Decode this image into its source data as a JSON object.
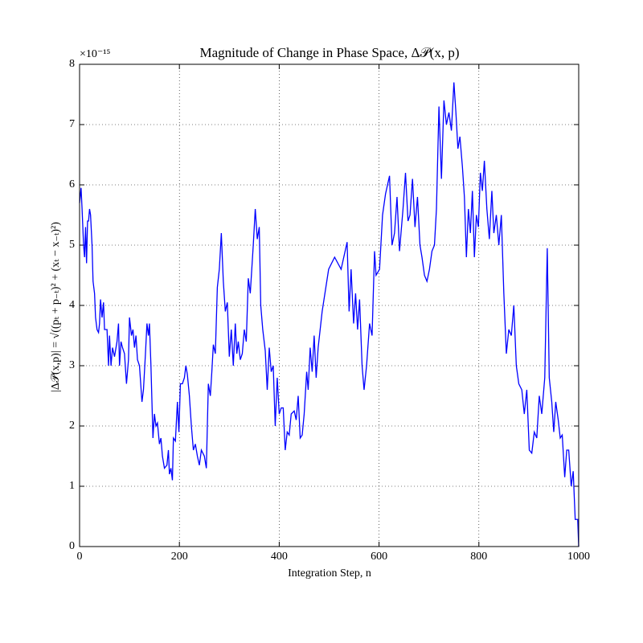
{
  "chart_data": {
    "type": "line",
    "title": "Magnitude of Change in Phase Space, Δ𝒫(x, p)",
    "x_label": "Integration Step, n",
    "y_label": "|Δ𝒫(x,p)| = √((pₜ + p₋ₜ)² + (xₜ − x₋ₜ)²)",
    "y_scale_label": "×10⁻¹⁵",
    "xlim": [
      0,
      1000
    ],
    "xticks": [
      0,
      200,
      400,
      600,
      800,
      1000
    ],
    "ylim": [
      0,
      8
    ],
    "yticks": [
      0,
      1,
      2,
      3,
      4,
      5,
      6,
      7,
      8
    ],
    "grid": true,
    "series": [
      {
        "color": "#0000ff",
        "x": [
          0,
          3,
          5,
          8,
          10,
          12,
          14,
          16,
          18,
          20,
          22,
          25,
          27,
          30,
          32,
          35,
          38,
          40,
          42,
          45,
          48,
          50,
          55,
          58,
          60,
          63,
          66,
          70,
          75,
          78,
          80,
          83,
          86,
          90,
          94,
          98,
          100,
          104,
          107,
          110,
          113,
          116,
          120,
          125,
          128,
          132,
          135,
          138,
          140,
          143,
          147,
          150,
          153,
          156,
          160,
          163,
          166,
          170,
          175,
          178,
          180,
          183,
          186,
          188,
          192,
          196,
          199,
          202,
          206,
          210,
          213,
          216,
          220,
          224,
          228,
          232,
          236,
          240,
          244,
          250,
          254,
          258,
          262,
          265,
          268,
          272,
          276,
          280,
          284,
          288,
          292,
          296,
          300,
          304,
          308,
          312,
          315,
          318,
          322,
          326,
          330,
          334,
          338,
          342,
          348,
          352,
          356,
          360,
          363,
          367,
          372,
          376,
          380,
          384,
          388,
          392,
          396,
          400,
          404,
          408,
          412,
          416,
          420,
          424,
          430,
          434,
          438,
          442,
          446,
          450,
          455,
          458,
          462,
          466,
          470,
          474,
          478,
          486,
          499,
          511,
          524,
          536,
          540,
          544,
          549,
          553,
          557,
          561,
          566,
          570,
          575,
          581,
          586,
          591,
          594,
          601,
          607,
          613,
          621,
          626,
          631,
          636,
          641,
          648,
          653,
          658,
          662,
          667,
          672,
          677,
          682,
          686,
          691,
          696,
          701,
          706,
          711,
          715,
          720,
          725,
          730,
          735,
          740,
          745,
          750,
          754,
          758,
          762,
          767,
          771,
          775,
          779,
          783,
          787,
          791,
          795,
          799,
          803,
          807,
          811,
          816,
          821,
          826,
          830,
          835,
          840,
          845,
          850,
          855,
          860,
          865,
          870,
          875,
          880,
          886,
          891,
          896,
          901,
          906,
          911,
          916,
          921,
          926,
          932,
          937,
          941,
          946,
          950,
          954,
          959,
          963,
          967,
          972,
          976,
          980,
          985,
          989,
          993,
          998,
          1000
        ],
        "values": [
          5.7,
          5.95,
          5.6,
          5.0,
          4.8,
          5.3,
          4.7,
          5.4,
          5.4,
          5.6,
          5.5,
          5.0,
          4.4,
          4.2,
          3.8,
          3.6,
          3.55,
          3.7,
          4.1,
          3.8,
          4.05,
          3.6,
          3.6,
          3.0,
          3.5,
          3.0,
          3.3,
          3.15,
          3.4,
          3.7,
          3.0,
          3.4,
          3.3,
          3.2,
          2.7,
          3.1,
          3.8,
          3.5,
          3.6,
          3.3,
          3.5,
          3.1,
          3.0,
          2.4,
          2.6,
          3.2,
          3.7,
          3.5,
          3.7,
          3.0,
          1.8,
          2.2,
          2.0,
          2.05,
          1.7,
          1.8,
          1.5,
          1.3,
          1.35,
          1.6,
          1.2,
          1.3,
          1.1,
          1.8,
          1.75,
          2.4,
          1.9,
          2.7,
          2.7,
          2.8,
          3.0,
          2.85,
          2.5,
          2.0,
          1.6,
          1.7,
          1.5,
          1.35,
          1.6,
          1.5,
          1.3,
          2.7,
          2.5,
          2.9,
          3.35,
          3.2,
          4.3,
          4.6,
          5.2,
          4.4,
          3.9,
          4.05,
          3.15,
          3.6,
          3.0,
          3.7,
          3.2,
          3.4,
          3.1,
          3.2,
          3.6,
          3.4,
          4.45,
          4.2,
          5.0,
          5.6,
          5.1,
          5.3,
          4.0,
          3.6,
          3.25,
          2.6,
          3.3,
          2.9,
          3.0,
          2.0,
          2.8,
          2.2,
          2.3,
          2.3,
          1.6,
          1.9,
          1.85,
          2.2,
          2.25,
          2.1,
          2.5,
          1.8,
          1.85,
          2.2,
          2.9,
          2.6,
          3.3,
          2.9,
          3.5,
          2.8,
          3.3,
          3.9,
          4.6,
          4.8,
          4.6,
          5.05,
          3.9,
          4.6,
          3.7,
          4.2,
          3.6,
          4.1,
          3.0,
          2.6,
          3.0,
          3.7,
          3.5,
          4.9,
          4.5,
          4.6,
          5.5,
          5.85,
          6.15,
          5.0,
          5.2,
          5.8,
          4.9,
          5.6,
          6.2,
          5.4,
          5.5,
          6.1,
          5.3,
          5.8,
          5.0,
          4.8,
          4.5,
          4.4,
          4.6,
          4.9,
          5.0,
          5.6,
          7.3,
          6.1,
          7.4,
          7.0,
          7.2,
          6.9,
          7.7,
          7.2,
          6.6,
          6.8,
          6.3,
          5.8,
          4.8,
          5.6,
          5.2,
          5.9,
          4.8,
          5.5,
          5.3,
          6.2,
          5.9,
          6.4,
          5.6,
          5.1,
          5.9,
          5.2,
          5.5,
          5.0,
          5.5,
          4.2,
          3.2,
          3.6,
          3.5,
          4.0,
          3.0,
          2.7,
          2.6,
          2.2,
          2.6,
          1.6,
          1.55,
          1.9,
          1.8,
          2.5,
          2.2,
          2.8,
          4.95,
          2.8,
          2.4,
          1.9,
          2.4,
          2.1,
          1.8,
          1.85,
          1.15,
          1.6,
          1.6,
          1.0,
          1.25,
          0.45,
          0.45,
          0
        ]
      }
    ]
  }
}
